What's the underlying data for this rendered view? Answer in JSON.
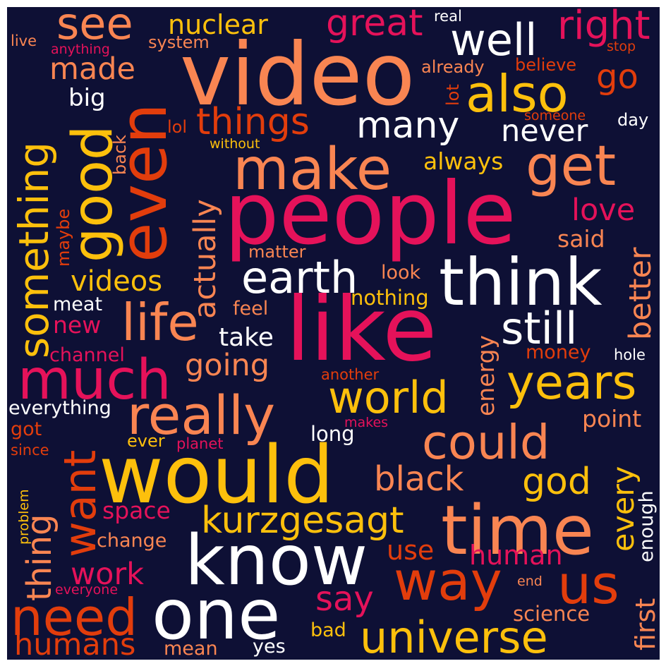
{
  "words": [
    {
      "text": "video",
      "color": "#f98552"
    },
    {
      "text": "people",
      "color": "#e5125a"
    },
    {
      "text": "like",
      "color": "#e5125a"
    },
    {
      "text": "would",
      "color": "#fdc00c"
    },
    {
      "text": "know",
      "color": "#ffffff"
    },
    {
      "text": "one",
      "color": "#ffffff"
    },
    {
      "text": "time",
      "color": "#f98552"
    },
    {
      "text": "think",
      "color": "#ffffff"
    },
    {
      "text": "make",
      "color": "#f98552"
    },
    {
      "text": "get",
      "color": "#f98552"
    },
    {
      "text": "also",
      "color": "#fdc00c"
    },
    {
      "text": "well",
      "color": "#ffffff"
    },
    {
      "text": "see",
      "color": "#f98552"
    },
    {
      "text": "right",
      "color": "#e5125a"
    },
    {
      "text": "great",
      "color": "#e5125a"
    },
    {
      "text": "nuclear",
      "color": "#fdc00c"
    },
    {
      "text": "real",
      "color": "#ffffff"
    },
    {
      "text": "live",
      "color": "#f98552"
    },
    {
      "text": "anything",
      "color": "#e5125a"
    },
    {
      "text": "system",
      "color": "#f98552"
    },
    {
      "text": "stop",
      "color": "#e23d0c"
    },
    {
      "text": "made",
      "color": "#f98552"
    },
    {
      "text": "go",
      "color": "#e23d0c"
    },
    {
      "text": "already",
      "color": "#f98552"
    },
    {
      "text": "believe",
      "color": "#e23d0c"
    },
    {
      "text": "big",
      "color": "#ffffff"
    },
    {
      "text": "things",
      "color": "#e23d0c"
    },
    {
      "text": "lol",
      "color": "#e23d0c"
    },
    {
      "text": "many",
      "color": "#ffffff"
    },
    {
      "text": "never",
      "color": "#ffffff"
    },
    {
      "text": "someone",
      "color": "#e23d0c"
    },
    {
      "text": "day",
      "color": "#ffffff"
    },
    {
      "text": "without",
      "color": "#fdc00c"
    },
    {
      "text": "lot",
      "color": "#e23d0c"
    },
    {
      "text": "always",
      "color": "#fdc00c"
    },
    {
      "text": "even",
      "color": "#e23d0c"
    },
    {
      "text": "good",
      "color": "#fdc00c"
    },
    {
      "text": "something",
      "color": "#fdc00c"
    },
    {
      "text": "back",
      "color": "#f98552"
    },
    {
      "text": "maybe",
      "color": "#e23d0c"
    },
    {
      "text": "actually",
      "color": "#f98552"
    },
    {
      "text": "videos",
      "color": "#fdc00c"
    },
    {
      "text": "matter",
      "color": "#f98552"
    },
    {
      "text": "earth",
      "color": "#ffffff"
    },
    {
      "text": "look",
      "color": "#f98552"
    },
    {
      "text": "love",
      "color": "#e5125a"
    },
    {
      "text": "said",
      "color": "#f98552"
    },
    {
      "text": "better",
      "color": "#f98552"
    },
    {
      "text": "still",
      "color": "#ffffff"
    },
    {
      "text": "meat",
      "color": "#ffffff"
    },
    {
      "text": "new",
      "color": "#e5125a"
    },
    {
      "text": "life",
      "color": "#f98552"
    },
    {
      "text": "feel",
      "color": "#f98552"
    },
    {
      "text": "nothing",
      "color": "#fdc00c"
    },
    {
      "text": "take",
      "color": "#ffffff"
    },
    {
      "text": "energy",
      "color": "#f98552"
    },
    {
      "text": "money",
      "color": "#e23d0c"
    },
    {
      "text": "hole",
      "color": "#ffffff"
    },
    {
      "text": "channel",
      "color": "#e5125a"
    },
    {
      "text": "much",
      "color": "#e5125a"
    },
    {
      "text": "going",
      "color": "#f98552"
    },
    {
      "text": "another",
      "color": "#e23d0c"
    },
    {
      "text": "years",
      "color": "#fdc00c"
    },
    {
      "text": "world",
      "color": "#fdc00c"
    },
    {
      "text": "everything",
      "color": "#ffffff"
    },
    {
      "text": "really",
      "color": "#f98552"
    },
    {
      "text": "want",
      "color": "#e23d0c"
    },
    {
      "text": "got",
      "color": "#e23d0c"
    },
    {
      "text": "since",
      "color": "#e23d0c"
    },
    {
      "text": "ever",
      "color": "#fdc00c"
    },
    {
      "text": "planet",
      "color": "#e5125a"
    },
    {
      "text": "makes",
      "color": "#e5125a"
    },
    {
      "text": "long",
      "color": "#ffffff"
    },
    {
      "text": "could",
      "color": "#f98552"
    },
    {
      "text": "point",
      "color": "#f98552"
    },
    {
      "text": "problem",
      "color": "#fdc00c"
    },
    {
      "text": "thing",
      "color": "#f98552"
    },
    {
      "text": "black",
      "color": "#f98552"
    },
    {
      "text": "god",
      "color": "#fdc00c"
    },
    {
      "text": "every",
      "color": "#fdc00c"
    },
    {
      "text": "enough",
      "color": "#ffffff"
    },
    {
      "text": "space",
      "color": "#e5125a"
    },
    {
      "text": "kurzgesagt",
      "color": "#fdc00c"
    },
    {
      "text": "change",
      "color": "#f98552"
    },
    {
      "text": "use",
      "color": "#e23d0c"
    },
    {
      "text": "human",
      "color": "#e5125a"
    },
    {
      "text": "work",
      "color": "#e5125a"
    },
    {
      "text": "way",
      "color": "#e23d0c"
    },
    {
      "text": "us",
      "color": "#e23d0c"
    },
    {
      "text": "everyone",
      "color": "#e5125a"
    },
    {
      "text": "end",
      "color": "#f98552"
    },
    {
      "text": "need",
      "color": "#e23d0c"
    },
    {
      "text": "say",
      "color": "#e5125a"
    },
    {
      "text": "first",
      "color": "#f98552"
    },
    {
      "text": "science",
      "color": "#f98552"
    },
    {
      "text": "bad",
      "color": "#fdc00c"
    },
    {
      "text": "universe",
      "color": "#fdc00c"
    },
    {
      "text": "humans",
      "color": "#e23d0c"
    },
    {
      "text": "mean",
      "color": "#f98552"
    },
    {
      "text": "yes",
      "color": "#ffffff"
    }
  ]
}
